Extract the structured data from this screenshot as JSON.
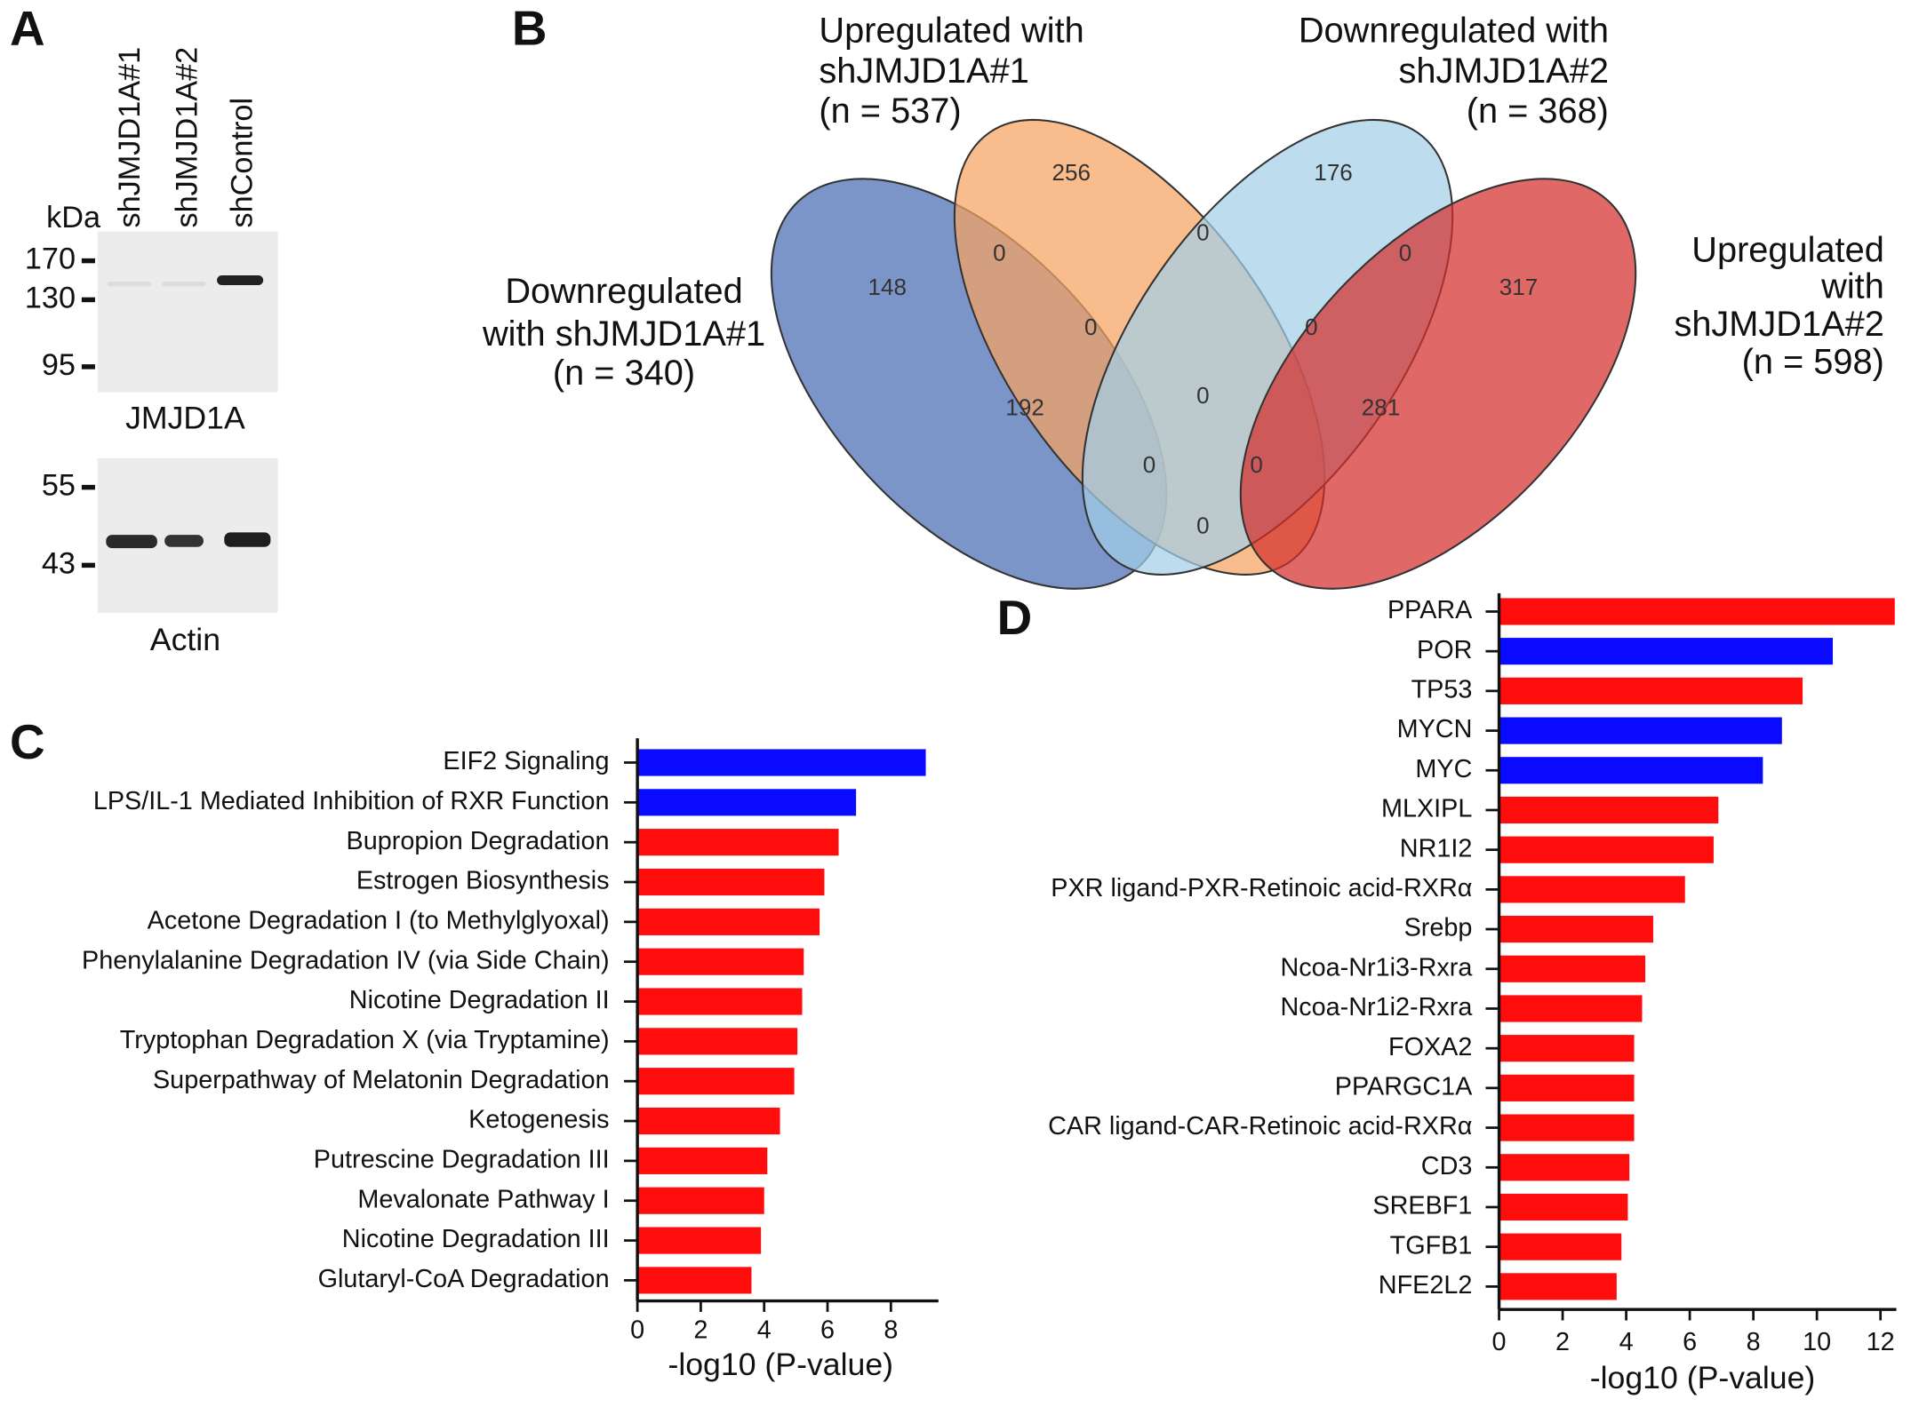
{
  "blot": {
    "panel_label": "A",
    "unit": "kDa",
    "lanes": [
      "shJMJD1A#1",
      "shJMJD1A#2",
      "shControl"
    ],
    "gels": [
      {
        "name": "JMJD1A",
        "markers": [
          170,
          130,
          95
        ]
      },
      {
        "name": "Actin",
        "markers": [
          55,
          43
        ]
      }
    ]
  },
  "chart_data": [
    {
      "type": "venn",
      "panel_label": "B",
      "sets": [
        {
          "label_lines": [
            "Downregulated",
            "with shJMJD1A#1",
            "(n = 340)"
          ],
          "color": "#4a6cb3"
        },
        {
          "label_lines": [
            "Upregulated with",
            "shJMJD1A#1",
            "(n = 537)"
          ],
          "color": "#f6a461"
        },
        {
          "label_lines": [
            "Downregulated with",
            "shJMJD1A#2",
            "(n = 368)"
          ],
          "color": "#a3cfe8"
        },
        {
          "label_lines": [
            "Upregulated",
            "with",
            "shJMJD1A#2",
            "(n = 598)"
          ],
          "color": "#d42f2c"
        }
      ],
      "values": [
        148,
        256,
        176,
        317,
        0,
        0,
        0,
        0,
        0,
        192,
        0,
        281,
        0,
        0,
        0
      ]
    },
    {
      "type": "bar",
      "panel_label": "C",
      "orientation": "horizontal",
      "categories": [
        "EIF2 Signaling",
        "LPS/IL-1 Mediated Inhibition of RXR Function",
        "Bupropion Degradation",
        "Estrogen Biosynthesis",
        "Acetone Degradation I (to Methylglyoxal)",
        "Phenylalanine Degradation IV (via Side Chain)",
        "Nicotine Degradation II",
        "Tryptophan Degradation X (via Tryptamine)",
        "Superpathway of Melatonin Degradation",
        "Ketogenesis",
        "Putrescine Degradation III",
        "Mevalonate Pathway I",
        "Nicotine Degradation III",
        "Glutaryl-CoA Degradation"
      ],
      "values": [
        9.1,
        6.9,
        6.35,
        5.9,
        5.75,
        5.25,
        5.2,
        5.05,
        4.95,
        4.5,
        4.1,
        4.0,
        3.9,
        3.6
      ],
      "colors": [
        "#0a0aff",
        "#0a0aff",
        "#ff0d0d",
        "#ff0d0d",
        "#ff0d0d",
        "#ff0d0d",
        "#ff0d0d",
        "#ff0d0d",
        "#ff0d0d",
        "#ff0d0d",
        "#ff0d0d",
        "#ff0d0d",
        "#ff0d0d",
        "#ff0d0d"
      ],
      "xlim": [
        0,
        9.5
      ],
      "xticks": [
        0,
        2,
        4,
        6,
        8
      ],
      "xlabel": "-log10 (P-value)"
    },
    {
      "type": "bar",
      "panel_label": "D",
      "orientation": "horizontal",
      "categories": [
        "PPARA",
        "POR",
        "TP53",
        "MYCN",
        "MYC",
        "MLXIPL",
        "NR1I2",
        "PXR ligand-PXR-Retinoic acid-RXRα",
        "Srebp",
        "Ncoa-Nr1i3-Rxra",
        "Ncoa-Nr1i2-Rxra",
        "FOXA2",
        "PPARGC1A",
        "CAR ligand-CAR-Retinoic acid-RXRα",
        "CD3",
        "SREBF1",
        "TGFB1",
        "NFE2L2"
      ],
      "values": [
        12.45,
        10.5,
        9.55,
        8.9,
        8.3,
        6.9,
        6.75,
        5.85,
        4.85,
        4.6,
        4.5,
        4.25,
        4.25,
        4.25,
        4.1,
        4.05,
        3.85,
        3.7
      ],
      "colors": [
        "#ff0d0d",
        "#0a0aff",
        "#ff0d0d",
        "#0a0aff",
        "#0a0aff",
        "#ff0d0d",
        "#ff0d0d",
        "#ff0d0d",
        "#ff0d0d",
        "#ff0d0d",
        "#ff0d0d",
        "#ff0d0d",
        "#ff0d0d",
        "#ff0d0d",
        "#ff0d0d",
        "#ff0d0d",
        "#ff0d0d",
        "#ff0d0d"
      ],
      "xlim": [
        0,
        12.5
      ],
      "xticks": [
        0,
        2,
        4,
        6,
        8,
        10,
        12
      ],
      "xlabel": "-log10 (P-value)"
    }
  ]
}
